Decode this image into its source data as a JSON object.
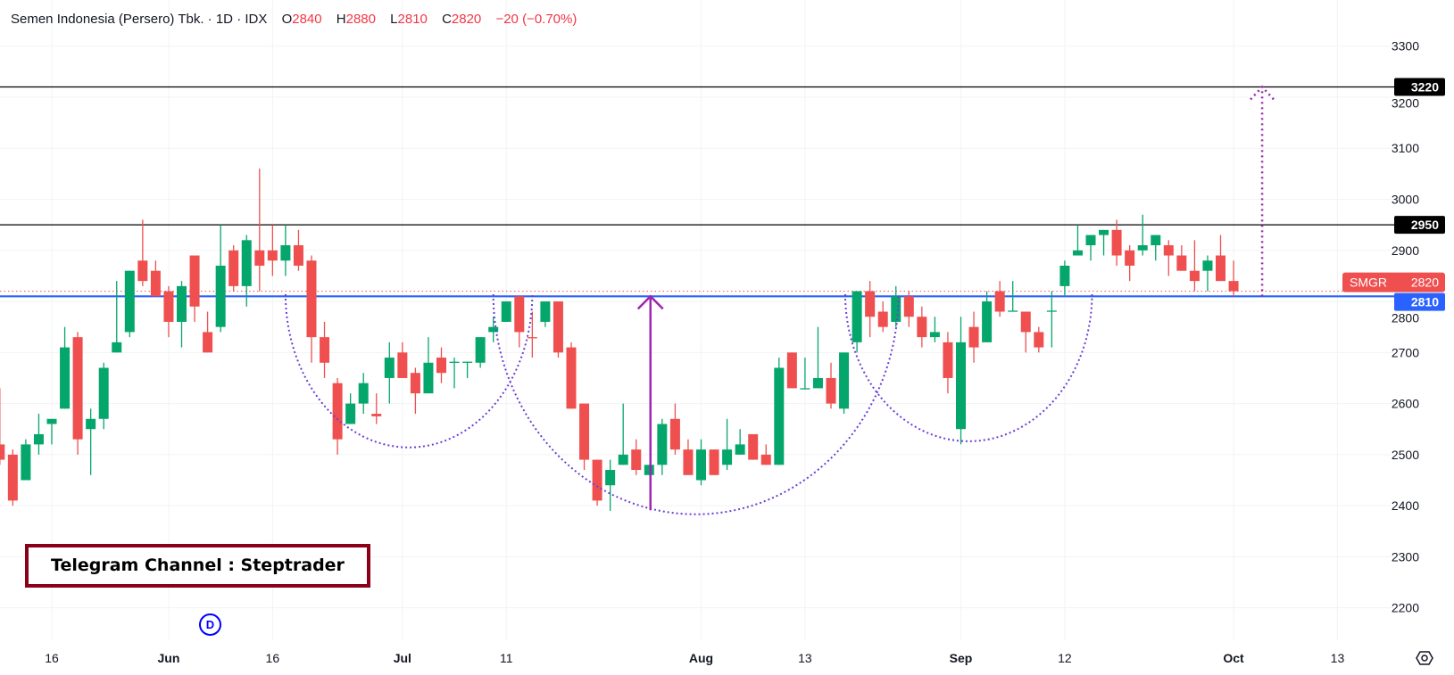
{
  "header": {
    "symbol_name": "Semen Indonesia (Persero) Tbk.",
    "sep1": "·",
    "interval": "1D",
    "sep2": "·",
    "exchange": "IDX",
    "o_label": "O",
    "o_value": "2840",
    "h_label": "H",
    "h_value": "2880",
    "l_label": "L",
    "l_value": "2810",
    "c_label": "C",
    "c_value": "2820",
    "change": "−20 (−0.70%)"
  },
  "colors": {
    "up": "#05a66b",
    "down": "#ef4f4f",
    "support": "#2962ff",
    "resistance": "#000000",
    "pattern": "#6b3fd4",
    "target_arrow": "#9c27b0",
    "watermark_border": "#8a0019",
    "badge": "#0000ff"
  },
  "watermark": {
    "text": "Telegram Channel : Steptrader"
  },
  "event_badge": {
    "text": "D"
  },
  "price_axis": {
    "ticks": [
      "3300",
      "3200",
      "3100",
      "3000",
      "2900",
      "2800",
      "2700",
      "2600",
      "2500",
      "2400",
      "2300",
      "2200"
    ]
  },
  "levels": {
    "target": {
      "value": 3220,
      "label": "3220"
    },
    "resistance": {
      "value": 2950,
      "label": "2950"
    },
    "support": {
      "value": 2810,
      "label": "2810"
    },
    "last_price": {
      "symbol": "SMGR",
      "value": 2820,
      "label": "2820"
    }
  },
  "chart_data": {
    "type": "candlestick",
    "title": "Semen Indonesia (Persero) Tbk. · 1D · IDX",
    "ylim": [
      2180,
      3330
    ],
    "grid": true,
    "x_ticks": [
      {
        "label": "16",
        "bar": 4,
        "month": false
      },
      {
        "label": "Jun",
        "bar": 13,
        "month": true
      },
      {
        "label": "16",
        "bar": 21,
        "month": false
      },
      {
        "label": "Jul",
        "bar": 31,
        "month": true
      },
      {
        "label": "11",
        "bar": 39,
        "month": false
      },
      {
        "label": "Aug",
        "bar": 54,
        "month": true
      },
      {
        "label": "13",
        "bar": 62,
        "month": false
      },
      {
        "label": "Sep",
        "bar": 74,
        "month": true
      },
      {
        "label": "12",
        "bar": 82,
        "month": false
      },
      {
        "label": "Oct",
        "bar": 95,
        "month": true
      },
      {
        "label": "13",
        "bar": 103,
        "month": false
      }
    ],
    "ohlc_fields": [
      "open",
      "high",
      "low",
      "close"
    ],
    "candles": [
      [
        2520,
        2630,
        2480,
        2490
      ],
      [
        2500,
        2510,
        2400,
        2410
      ],
      [
        2450,
        2530,
        2450,
        2520
      ],
      [
        2520,
        2580,
        2500,
        2540
      ],
      [
        2560,
        2570,
        2520,
        2570
      ],
      [
        2590,
        2750,
        2590,
        2710
      ],
      [
        2730,
        2740,
        2500,
        2530
      ],
      [
        2550,
        2590,
        2460,
        2570
      ],
      [
        2570,
        2680,
        2550,
        2670
      ],
      [
        2700,
        2840,
        2700,
        2720
      ],
      [
        2740,
        2860,
        2730,
        2860
      ],
      [
        2880,
        2960,
        2830,
        2840
      ],
      [
        2860,
        2880,
        2810,
        2810
      ],
      [
        2820,
        2830,
        2730,
        2760
      ],
      [
        2760,
        2840,
        2710,
        2830
      ],
      [
        2890,
        2890,
        2760,
        2790
      ],
      [
        2740,
        2780,
        2700,
        2700
      ],
      [
        2750,
        2950,
        2740,
        2870
      ],
      [
        2900,
        2910,
        2820,
        2830
      ],
      [
        2830,
        2930,
        2790,
        2920
      ],
      [
        2900,
        3060,
        2820,
        2870
      ],
      [
        2900,
        2950,
        2850,
        2880
      ],
      [
        2880,
        2950,
        2850,
        2910
      ],
      [
        2910,
        2940,
        2860,
        2870
      ],
      [
        2880,
        2890,
        2680,
        2730
      ],
      [
        2730,
        2760,
        2650,
        2680
      ],
      [
        2640,
        2650,
        2500,
        2530
      ],
      [
        2560,
        2620,
        2560,
        2600
      ],
      [
        2600,
        2660,
        2580,
        2640
      ],
      [
        2580,
        2620,
        2560,
        2575
      ],
      [
        2650,
        2720,
        2600,
        2690
      ],
      [
        2700,
        2720,
        2650,
        2650
      ],
      [
        2660,
        2670,
        2580,
        2620
      ],
      [
        2620,
        2730,
        2620,
        2680
      ],
      [
        2690,
        2710,
        2640,
        2660
      ],
      [
        2680,
        2690,
        2630,
        2682
      ],
      [
        2680,
        2682,
        2650,
        2682
      ],
      [
        2680,
        2730,
        2670,
        2730
      ],
      [
        2740,
        2770,
        2720,
        2750
      ],
      [
        2760,
        2800,
        2760,
        2800
      ],
      [
        2810,
        2810,
        2710,
        2740
      ],
      [
        2730,
        2780,
        2690,
        2728
      ],
      [
        2760,
        2800,
        2750,
        2800
      ],
      [
        2800,
        2800,
        2690,
        2700
      ],
      [
        2710,
        2720,
        2590,
        2590
      ],
      [
        2600,
        2600,
        2470,
        2490
      ],
      [
        2490,
        2490,
        2400,
        2410
      ],
      [
        2440,
        2490,
        2390,
        2470
      ],
      [
        2480,
        2600,
        2480,
        2500
      ],
      [
        2510,
        2530,
        2460,
        2470
      ],
      [
        2460,
        2480,
        2460,
        2480
      ],
      [
        2480,
        2570,
        2460,
        2560
      ],
      [
        2570,
        2600,
        2500,
        2510
      ],
      [
        2510,
        2530,
        2460,
        2460
      ],
      [
        2450,
        2530,
        2440,
        2510
      ],
      [
        2510,
        2510,
        2460,
        2460
      ],
      [
        2480,
        2570,
        2470,
        2510
      ],
      [
        2500,
        2550,
        2500,
        2520
      ],
      [
        2540,
        2540,
        2490,
        2490
      ],
      [
        2500,
        2520,
        2480,
        2480
      ],
      [
        2480,
        2690,
        2480,
        2670
      ],
      [
        2700,
        2700,
        2630,
        2630
      ],
      [
        2628,
        2690,
        2628,
        2630
      ],
      [
        2630,
        2750,
        2630,
        2650
      ],
      [
        2650,
        2680,
        2590,
        2600
      ],
      [
        2590,
        2700,
        2580,
        2700
      ],
      [
        2720,
        2820,
        2700,
        2820
      ],
      [
        2820,
        2840,
        2730,
        2770
      ],
      [
        2780,
        2800,
        2740,
        2750
      ],
      [
        2760,
        2830,
        2750,
        2810
      ],
      [
        2810,
        2820,
        2750,
        2770
      ],
      [
        2770,
        2790,
        2710,
        2730
      ],
      [
        2730,
        2770,
        2720,
        2740
      ],
      [
        2720,
        2740,
        2620,
        2650
      ],
      [
        2550,
        2770,
        2520,
        2720
      ],
      [
        2750,
        2780,
        2680,
        2710
      ],
      [
        2720,
        2820,
        2720,
        2800
      ],
      [
        2820,
        2840,
        2770,
        2780
      ],
      [
        2780,
        2840,
        2780,
        2782
      ],
      [
        2780,
        2780,
        2700,
        2740
      ],
      [
        2740,
        2750,
        2700,
        2710
      ],
      [
        2780,
        2820,
        2710,
        2782
      ],
      [
        2830,
        2880,
        2810,
        2870
      ],
      [
        2890,
        2950,
        2890,
        2900
      ],
      [
        2910,
        2930,
        2880,
        2930
      ],
      [
        2930,
        2940,
        2890,
        2940
      ],
      [
        2940,
        2960,
        2870,
        2890
      ],
      [
        2900,
        2910,
        2840,
        2870
      ],
      [
        2900,
        2970,
        2890,
        2910
      ],
      [
        2910,
        2930,
        2880,
        2930
      ],
      [
        2910,
        2920,
        2850,
        2890
      ],
      [
        2890,
        2910,
        2860,
        2860
      ],
      [
        2860,
        2920,
        2820,
        2840
      ],
      [
        2860,
        2890,
        2820,
        2880
      ],
      [
        2890,
        2930,
        2840,
        2840
      ],
      [
        2840,
        2880,
        2810,
        2820
      ]
    ]
  }
}
